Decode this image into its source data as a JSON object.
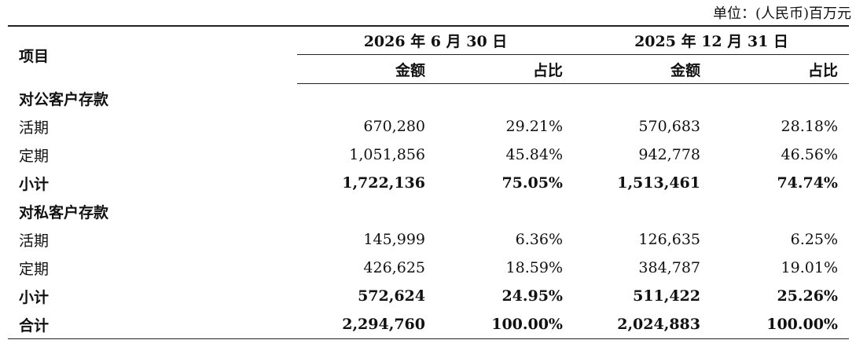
{
  "unit": "单位：(人民币)百万元",
  "header": {
    "item": "项目",
    "periods": [
      "2026 年 6 月 30 日",
      "2025 年 12 月 31 日"
    ],
    "columns": [
      "金额",
      "占比",
      "金额",
      "占比"
    ]
  },
  "table": {
    "rows": [
      [
        "对公客户存款"
      ],
      [
        "活期",
        "670,280",
        "29.21%",
        "570,683",
        "28.18%"
      ],
      [
        "定期",
        "1,051,856",
        "45.84%",
        "942,778",
        "46.56%"
      ],
      [
        "小计",
        "1,722,136",
        "75.05%",
        "1,513,461",
        "74.74%"
      ],
      [
        "对私客户存款"
      ],
      [
        "活期",
        "145,999",
        "6.36%",
        "126,635",
        "6.25%"
      ],
      [
        "定期",
        "426,625",
        "18.59%",
        "384,787",
        "19.01%"
      ],
      [
        "小计",
        "572,624",
        "24.95%",
        "511,422",
        "25.26%"
      ],
      [
        "合计",
        "2,294,760",
        "100.00%",
        "2,024,883",
        "100.00%"
      ]
    ]
  }
}
